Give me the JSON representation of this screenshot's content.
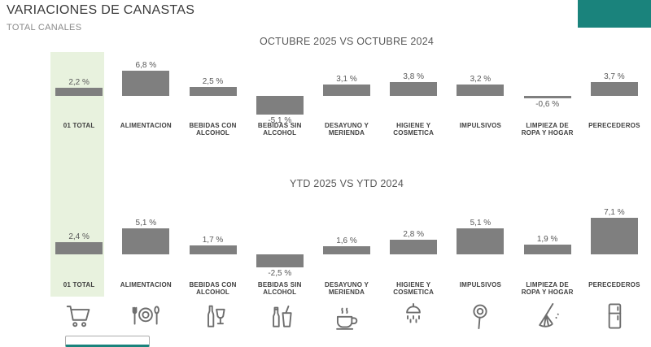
{
  "page": {
    "title": "VARIACIONES DE CANASTAS",
    "subtitle": "TOTAL CANALES"
  },
  "colors": {
    "bar": "#7f7f7f",
    "highlight_band": "#e8f2de",
    "accent": "#1a837c"
  },
  "categories": [
    {
      "label": "01 TOTAL",
      "icon": "cart-icon"
    },
    {
      "label": "ALIMENTACION",
      "icon": "plate-icon"
    },
    {
      "label": "BEBIDAS CON ALCOHOL",
      "icon": "wine-icon"
    },
    {
      "label": "BEBIDAS SIN ALCOHOL",
      "icon": "soft-drink-icon"
    },
    {
      "label": "DESAYUNO Y MERIENDA",
      "icon": "coffee-icon"
    },
    {
      "label": "HIGIENE Y COSMETICA",
      "icon": "shower-icon"
    },
    {
      "label": "IMPULSIVOS",
      "icon": "lollipop-icon"
    },
    {
      "label": "LIMPIEZA DE ROPA Y HOGAR",
      "icon": "broom-icon"
    },
    {
      "label": "PERECEDEROS",
      "icon": "fridge-icon"
    }
  ],
  "chart_data": [
    {
      "type": "bar",
      "title": "OCTUBRE 2025 VS OCTUBRE 2024",
      "categories": [
        "01 TOTAL",
        "ALIMENTACION",
        "BEBIDAS CON ALCOHOL",
        "BEBIDAS SIN ALCOHOL",
        "DESAYUNO Y MERIENDA",
        "HIGIENE Y COSMETICA",
        "IMPULSIVOS",
        "LIMPIEZA DE ROPA Y HOGAR",
        "PERECEDEROS"
      ],
      "values": [
        2.2,
        6.8,
        2.5,
        -5.1,
        3.1,
        3.8,
        3.2,
        -0.6,
        3.7
      ],
      "value_labels": [
        "2,2 %",
        "6,8 %",
        "2,5 %",
        "-5,1 %",
        "3,1 %",
        "3,8 %",
        "3,2 %",
        "-0,6 %",
        "3,7 %"
      ],
      "ylabel": "",
      "xlabel": "",
      "grid": false,
      "legend": false,
      "bar_color": "#7f7f7f",
      "value_label_position": "outside-end"
    },
    {
      "type": "bar",
      "title": "YTD 2025 VS YTD 2024",
      "categories": [
        "01 TOTAL",
        "ALIMENTACION",
        "BEBIDAS CON ALCOHOL",
        "BEBIDAS SIN ALCOHOL",
        "DESAYUNO Y MERIENDA",
        "HIGIENE Y COSMETICA",
        "IMPULSIVOS",
        "LIMPIEZA DE ROPA Y HOGAR",
        "PERECEDEROS"
      ],
      "values": [
        2.4,
        5.1,
        1.7,
        -2.5,
        1.6,
        2.8,
        5.1,
        1.9,
        7.1
      ],
      "value_labels": [
        "2,4 %",
        "5,1 %",
        "1,7 %",
        "-2,5 %",
        "1,6 %",
        "2,8 %",
        "5,1 %",
        "1,9 %",
        "7,1 %"
      ],
      "ylabel": "",
      "xlabel": "",
      "grid": false,
      "legend": false,
      "bar_color": "#7f7f7f",
      "value_label_position": "outside-end"
    }
  ]
}
